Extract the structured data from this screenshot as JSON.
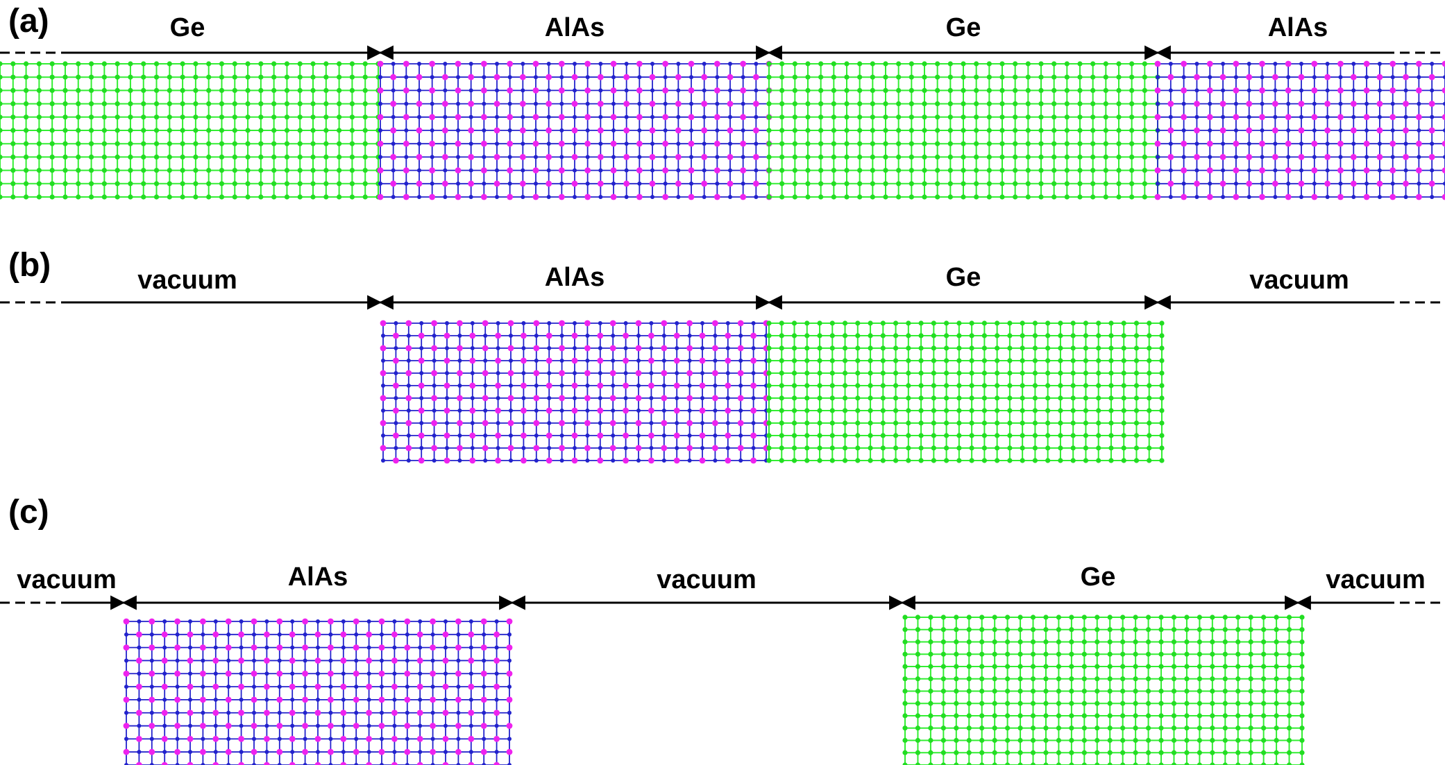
{
  "colors": {
    "Ge": "#33ee33",
    "Ge_atom": "#22dd22",
    "Al": "#ee22ee",
    "As": "#2222cc",
    "arrow": "#000000"
  },
  "panels": [
    {
      "letter": "(a)",
      "labels": [
        "Ge",
        "AlAs",
        "Ge",
        "AlAs"
      ],
      "slabs": [
        "Ge",
        "AlAs",
        "Ge",
        "AlAs"
      ]
    },
    {
      "letter": "(b)",
      "labels": [
        "vacuum",
        "AlAs",
        "Ge",
        "vacuum"
      ],
      "slabs": [
        "AlAs",
        "Ge"
      ]
    },
    {
      "letter": "(c)",
      "labels": [
        "vacuum",
        "AlAs",
        "vacuum",
        "Ge",
        "vacuum"
      ],
      "slabs": [
        "AlAs",
        "Ge"
      ]
    }
  ]
}
